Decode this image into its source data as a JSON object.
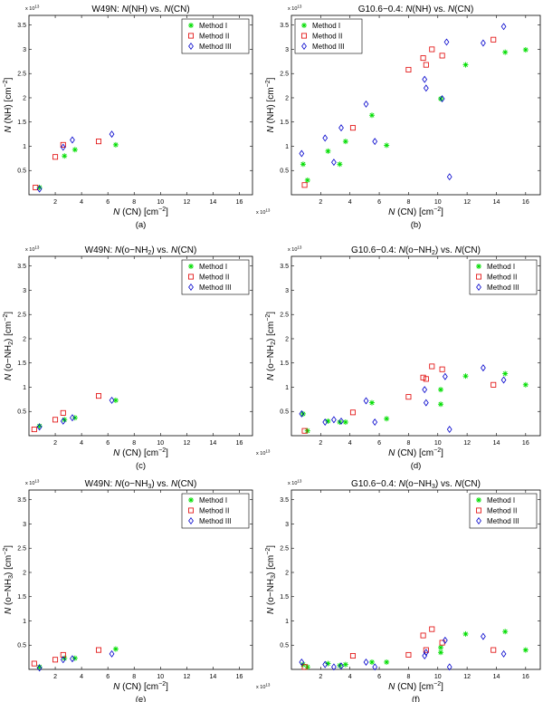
{
  "method_names": [
    "Method I",
    "Method II",
    "Method III"
  ],
  "marker_colors": {
    "Method I": "#00dd00",
    "Method II": "#e00000",
    "Method III": "#0000cc"
  },
  "chart_data": [
    {
      "id": "a",
      "type": "scatter",
      "title_src": "W49N:",
      "title_mid": "N",
      "title_mid2": "(NH)  vs. ",
      "title_n2": "N",
      "title_end": "(CN)",
      "xlabel_n": "N",
      "xlabel": "(CN)  [cm",
      "xlabel_exp": "−2",
      "xlabel_close": "]",
      "ylabel_n": "N",
      "ylabel": "(NH)  [cm",
      "ylabel_exp": "−2",
      "ylabel_close": "]",
      "scale_label": "x 10",
      "scale_exp": "13",
      "x_scale_label": "x 10",
      "x_scale_exp": "13",
      "xlim": [
        0,
        17
      ],
      "ylim": [
        0,
        3.7
      ],
      "xticks": [
        2,
        4,
        6,
        8,
        10,
        12,
        14,
        16
      ],
      "yticks": [
        0.5,
        1,
        1.5,
        2,
        2.5,
        3,
        3.5
      ],
      "legend_loc": "top-right",
      "caption": "(a)",
      "series": [
        {
          "name": "Method I",
          "marker": "star",
          "x": [
            0.8,
            2.7,
            3.5,
            6.6
          ],
          "y": [
            0.15,
            0.8,
            0.93,
            1.03
          ]
        },
        {
          "name": "Method II",
          "marker": "square",
          "x": [
            0.5,
            2.0,
            2.6,
            5.3
          ],
          "y": [
            0.15,
            0.78,
            1.03,
            1.1
          ]
        },
        {
          "name": "Method III",
          "marker": "diamond",
          "x": [
            0.8,
            2.6,
            3.3,
            6.3
          ],
          "y": [
            0.12,
            0.98,
            1.13,
            1.25
          ]
        }
      ]
    },
    {
      "id": "b",
      "type": "scatter",
      "title_src": "G10.6−0.4:",
      "title_mid": "N",
      "title_mid2": "(NH)  vs. ",
      "title_n2": "N",
      "title_end": "(CN)",
      "xlabel_n": "N",
      "xlabel": "(CN)  [cm",
      "xlabel_exp": "−2",
      "xlabel_close": "]",
      "ylabel_n": "N",
      "ylabel": "(NH)  [cm",
      "ylabel_exp": "−2",
      "ylabel_close": "]",
      "scale_label": "x 10",
      "scale_exp": "13",
      "x_scale_label": "x 10",
      "x_scale_exp": "13",
      "xlim": [
        0,
        17
      ],
      "ylim": [
        0,
        3.7
      ],
      "xticks": [
        2,
        4,
        6,
        8,
        10,
        12,
        14,
        16
      ],
      "yticks": [
        0.5,
        1,
        1.5,
        2,
        2.5,
        3,
        3.5
      ],
      "legend_loc": "top-left",
      "caption": "(b)",
      "series": [
        {
          "name": "Method I",
          "marker": "star",
          "x": [
            0.8,
            1.1,
            2.5,
            3.3,
            3.7,
            5.5,
            6.5,
            10.2,
            11.9,
            14.6,
            16.0
          ],
          "y": [
            0.63,
            0.3,
            0.9,
            0.63,
            1.1,
            1.64,
            1.02,
            1.98,
            2.68,
            2.94,
            2.99
          ]
        },
        {
          "name": "Method II",
          "marker": "square",
          "x": [
            0.9,
            4.2,
            8.0,
            9.0,
            9.2,
            9.6,
            10.3,
            13.8
          ],
          "y": [
            0.2,
            1.38,
            2.58,
            2.82,
            2.68,
            3.0,
            2.87,
            3.2
          ]
        },
        {
          "name": "Method III",
          "marker": "diamond",
          "x": [
            0.7,
            2.3,
            2.9,
            3.4,
            5.1,
            5.7,
            9.1,
            9.2,
            10.3,
            10.6,
            10.8,
            13.1,
            14.5
          ],
          "y": [
            0.85,
            1.17,
            0.67,
            1.38,
            1.87,
            1.1,
            2.38,
            2.2,
            1.98,
            3.15,
            0.37,
            3.13,
            3.47
          ]
        }
      ]
    },
    {
      "id": "c",
      "type": "scatter",
      "title_src": "W49N:",
      "title_mid": "N",
      "title_mid2": "(o−NH",
      "title_sub": "2",
      "title_mid3": ")  vs. ",
      "title_n2": "N",
      "title_end": "(CN)",
      "xlabel_n": "N",
      "xlabel": "(CN)  [cm",
      "xlabel_exp": "−2",
      "xlabel_close": "]",
      "ylabel_n": "N",
      "ylabel": "(o−NH",
      "ylabel_sub": "2",
      "ylabel_rest": ")  [cm",
      "ylabel_exp": "−2",
      "ylabel_close": "]",
      "scale_label": "x 10",
      "scale_exp": "13",
      "x_scale_label": "x 10",
      "x_scale_exp": "13",
      "xlim": [
        0,
        17
      ],
      "ylim": [
        0,
        3.7
      ],
      "xticks": [
        2,
        4,
        6,
        8,
        10,
        12,
        14,
        16
      ],
      "yticks": [
        0.5,
        1,
        1.5,
        2,
        2.5,
        3,
        3.5
      ],
      "legend_loc": "top-right",
      "caption": "(c)",
      "series": [
        {
          "name": "Method I",
          "marker": "star",
          "x": [
            0.8,
            2.7,
            3.5,
            6.6
          ],
          "y": [
            0.2,
            0.33,
            0.37,
            0.73
          ]
        },
        {
          "name": "Method II",
          "marker": "square",
          "x": [
            0.4,
            2.0,
            2.6,
            5.3
          ],
          "y": [
            0.13,
            0.33,
            0.47,
            0.82
          ]
        },
        {
          "name": "Method III",
          "marker": "diamond",
          "x": [
            0.8,
            2.6,
            3.3,
            6.3
          ],
          "y": [
            0.18,
            0.3,
            0.37,
            0.73
          ]
        }
      ]
    },
    {
      "id": "d",
      "type": "scatter",
      "title_src": "G10.6−0.4:",
      "title_mid": "N",
      "title_mid2": "(o−NH",
      "title_sub": "2",
      "title_mid3": ")  vs. ",
      "title_n2": "N",
      "title_end": "(CN)",
      "xlabel_n": "N",
      "xlabel": "(CN)  [cm",
      "xlabel_exp": "−2",
      "xlabel_close": "]",
      "ylabel_n": "N",
      "ylabel": "(o−NH",
      "ylabel_sub": "2",
      "ylabel_rest": ")  [cm",
      "ylabel_exp": "−2",
      "ylabel_close": "]",
      "scale_label": "x 10",
      "scale_exp": "13",
      "x_scale_label": "x 10",
      "x_scale_exp": "13",
      "xlim": [
        0,
        17
      ],
      "ylim": [
        0,
        3.7
      ],
      "xticks": [
        2,
        4,
        6,
        8,
        10,
        12,
        14,
        16
      ],
      "yticks": [
        0.5,
        1,
        1.5,
        2,
        2.5,
        3,
        3.5
      ],
      "legend_loc": "top-right",
      "caption": "(d)",
      "series": [
        {
          "name": "Method I",
          "marker": "star",
          "x": [
            0.8,
            1.1,
            2.5,
            3.3,
            3.7,
            5.5,
            6.5,
            10.2,
            10.2,
            11.9,
            14.6,
            16.0
          ],
          "y": [
            0.45,
            0.1,
            0.3,
            0.28,
            0.28,
            0.68,
            0.35,
            0.95,
            0.65,
            1.23,
            1.28,
            1.05
          ]
        },
        {
          "name": "Method II",
          "marker": "square",
          "x": [
            0.9,
            4.2,
            8.0,
            9.0,
            9.2,
            9.6,
            10.3,
            13.8
          ],
          "y": [
            0.1,
            0.48,
            0.8,
            1.2,
            1.17,
            1.43,
            1.37,
            1.05
          ]
        },
        {
          "name": "Method III",
          "marker": "diamond",
          "x": [
            0.7,
            2.3,
            2.9,
            3.4,
            5.1,
            5.7,
            9.1,
            9.2,
            10.5,
            10.8,
            13.1,
            14.5
          ],
          "y": [
            0.45,
            0.28,
            0.33,
            0.3,
            0.72,
            0.28,
            0.95,
            0.68,
            1.22,
            0.13,
            1.4,
            1.15
          ]
        }
      ]
    },
    {
      "id": "e",
      "type": "scatter",
      "title_src": "W49N:",
      "title_mid": "N",
      "title_mid2": "(o−NH",
      "title_sub": "3",
      "title_mid3": ")  vs. ",
      "title_n2": "N",
      "title_end": "(CN)",
      "xlabel_n": "N",
      "xlabel": "(CN)  [cm",
      "xlabel_exp": "−2",
      "xlabel_close": "]",
      "ylabel_n": "N",
      "ylabel": "(o−NH",
      "ylabel_sub": "3",
      "ylabel_rest": ")  [cm",
      "ylabel_exp": "−2",
      "ylabel_close": "]",
      "scale_label": "x 10",
      "scale_exp": "13",
      "x_scale_label": "x 10",
      "x_scale_exp": "13",
      "xlim": [
        0,
        17
      ],
      "ylim": [
        0,
        3.7
      ],
      "xticks": [
        2,
        4,
        6,
        8,
        10,
        12,
        14,
        16
      ],
      "yticks": [
        0.5,
        1,
        1.5,
        2,
        2.5,
        3,
        3.5
      ],
      "legend_loc": "top-right",
      "caption": "(e)",
      "series": [
        {
          "name": "Method I",
          "marker": "star",
          "x": [
            0.8,
            2.7,
            3.5,
            6.6
          ],
          "y": [
            0.05,
            0.23,
            0.23,
            0.42
          ]
        },
        {
          "name": "Method II",
          "marker": "square",
          "x": [
            0.4,
            2.0,
            2.6,
            5.3
          ],
          "y": [
            0.12,
            0.2,
            0.3,
            0.4
          ]
        },
        {
          "name": "Method III",
          "marker": "diamond",
          "x": [
            0.8,
            2.6,
            3.3,
            6.3
          ],
          "y": [
            0.03,
            0.2,
            0.22,
            0.32
          ]
        }
      ]
    },
    {
      "id": "f",
      "type": "scatter",
      "title_src": "G10.6−0.4:",
      "title_mid": "N",
      "title_mid2": "(o−NH",
      "title_sub": "3",
      "title_mid3": ")  vs. ",
      "title_n2": "N",
      "title_end": "(CN)",
      "xlabel_n": "N",
      "xlabel": "(CN)  [cm",
      "xlabel_exp": "−2",
      "xlabel_close": "]",
      "ylabel_n": "N",
      "ylabel": "(o−NH",
      "ylabel_sub": "3",
      "ylabel_rest": ")  [cm",
      "ylabel_exp": "−2",
      "ylabel_close": "]",
      "scale_label": "x 10",
      "scale_exp": "13",
      "x_scale_label": "x 10",
      "x_scale_exp": "13",
      "xlim": [
        0,
        17
      ],
      "ylim": [
        0,
        3.7
      ],
      "xticks": [
        2,
        4,
        6,
        8,
        10,
        12,
        14,
        16
      ],
      "yticks": [
        0.5,
        1,
        1.5,
        2,
        2.5,
        3,
        3.5
      ],
      "legend_loc": "top-right",
      "caption": "(f)",
      "series": [
        {
          "name": "Method I",
          "marker": "star",
          "x": [
            0.8,
            1.1,
            2.5,
            3.3,
            3.7,
            5.5,
            6.5,
            10.2,
            10.2,
            11.9,
            14.6,
            16.0
          ],
          "y": [
            0.1,
            0.05,
            0.12,
            0.08,
            0.1,
            0.15,
            0.15,
            0.45,
            0.35,
            0.73,
            0.78,
            0.4
          ]
        },
        {
          "name": "Method II",
          "marker": "square",
          "x": [
            0.9,
            4.2,
            8.0,
            9.0,
            9.2,
            9.6,
            10.3,
            13.8
          ],
          "y": [
            0.05,
            0.28,
            0.3,
            0.7,
            0.4,
            0.83,
            0.55,
            0.4
          ]
        },
        {
          "name": "Method III",
          "marker": "diamond",
          "x": [
            0.7,
            2.3,
            2.9,
            3.4,
            5.1,
            5.7,
            9.1,
            9.2,
            10.5,
            10.8,
            13.1,
            14.5
          ],
          "y": [
            0.15,
            0.1,
            0.05,
            0.07,
            0.15,
            0.05,
            0.28,
            0.35,
            0.6,
            0.05,
            0.68,
            0.32
          ]
        }
      ]
    }
  ]
}
